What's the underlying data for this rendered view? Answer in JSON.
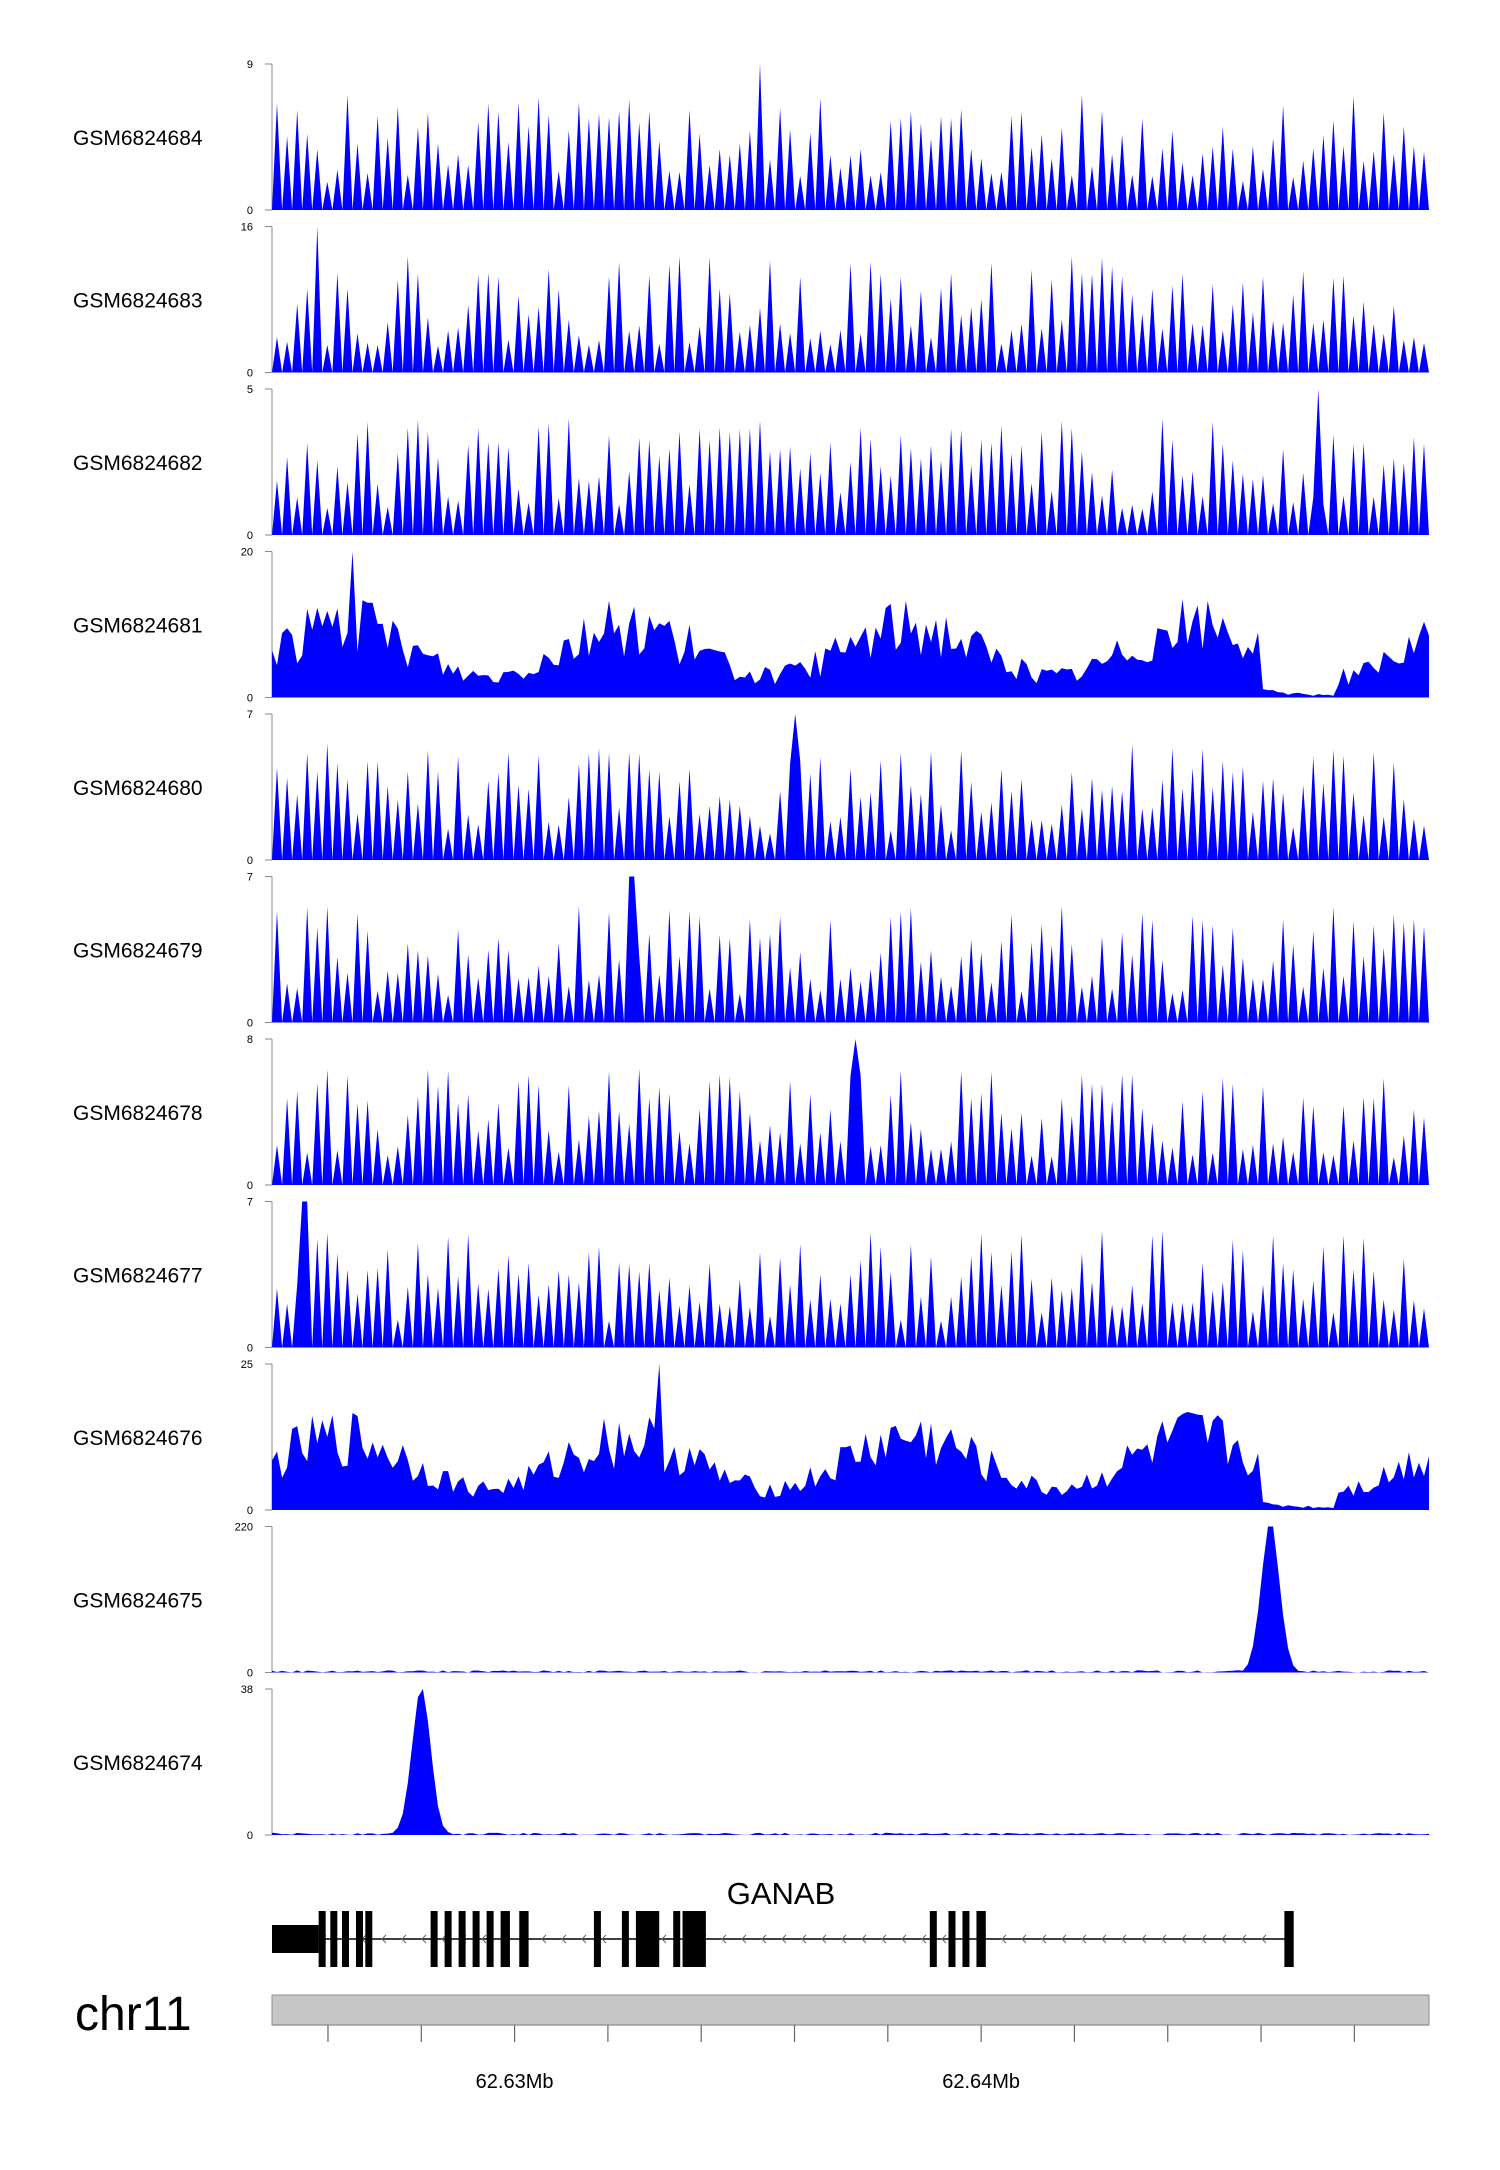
{
  "chart_data": {
    "type": "area",
    "title": "",
    "chromosome": "chr11",
    "x_range_mb": [
      62.6248,
      62.6496
    ],
    "x_axis": {
      "major_ticks": [
        62.63,
        62.64
      ],
      "major_labels": [
        "62.63Mb",
        "62.64Mb"
      ],
      "minor_ticks": [
        62.626,
        62.628,
        62.63,
        62.632,
        62.634,
        62.636,
        62.638,
        62.64,
        62.642,
        62.644,
        62.646,
        62.648
      ]
    },
    "gene": {
      "name": "GANAB",
      "strand": "-",
      "start_mb": 62.6248,
      "end_mb": 62.6466
    },
    "series_color": "#0000ff",
    "tracks": [
      {
        "name": "GSM6824684",
        "ylim": [
          0,
          9
        ],
        "ymin_label": "0",
        "ymax_label": "9",
        "peak_x_mb": 62.6353,
        "peak_y": 9,
        "pattern": "sparse"
      },
      {
        "name": "GSM6824683",
        "ylim": [
          0,
          16
        ],
        "ymin_label": "0",
        "ymax_label": "16",
        "peak_x_mb": 62.6258,
        "peak_y": 16,
        "pattern": "sparse"
      },
      {
        "name": "GSM6824682",
        "ylim": [
          0,
          5
        ],
        "ymin_label": "0",
        "ymax_label": "5",
        "peak_x_mb": 62.6472,
        "peak_y": 5,
        "pattern": "sparse"
      },
      {
        "name": "GSM6824681",
        "ylim": [
          0,
          20
        ],
        "ymin_label": "0",
        "ymax_label": "20",
        "peak_x_mb": 62.6265,
        "peak_y": 20,
        "pattern": "dense"
      },
      {
        "name": "GSM6824680",
        "ylim": [
          0,
          7
        ],
        "ymin_label": "0",
        "ymax_label": "7",
        "peak_x_mb": 62.636,
        "peak_y": 7,
        "pattern": "sparse"
      },
      {
        "name": "GSM6824679",
        "ylim": [
          0,
          7
        ],
        "ymin_label": "0",
        "ymax_label": "7",
        "peak_x_mb": 62.6325,
        "peak_y": 7,
        "pattern": "sparse"
      },
      {
        "name": "GSM6824678",
        "ylim": [
          0,
          8
        ],
        "ymin_label": "0",
        "ymax_label": "8",
        "peak_x_mb": 62.6373,
        "peak_y": 8,
        "pattern": "sparse"
      },
      {
        "name": "GSM6824677",
        "ylim": [
          0,
          7
        ],
        "ymin_label": "0",
        "ymax_label": "7",
        "peak_x_mb": 62.6255,
        "peak_y": 7,
        "pattern": "sparse"
      },
      {
        "name": "GSM6824676",
        "ylim": [
          0,
          25
        ],
        "ymin_label": "0",
        "ymax_label": "25",
        "peak_x_mb": 62.6331,
        "peak_y": 25,
        "pattern": "dense"
      },
      {
        "name": "GSM6824675",
        "ylim": [
          0,
          220
        ],
        "ymin_label": "0",
        "ymax_label": "220",
        "peak_x_mb": 62.6462,
        "peak_y": 220,
        "pattern": "single-peak"
      },
      {
        "name": "GSM6824674",
        "ylim": [
          0,
          38
        ],
        "ymin_label": "0",
        "ymax_label": "38",
        "peak_x_mb": 62.628,
        "peak_y": 38,
        "pattern": "single-peak"
      }
    ]
  }
}
